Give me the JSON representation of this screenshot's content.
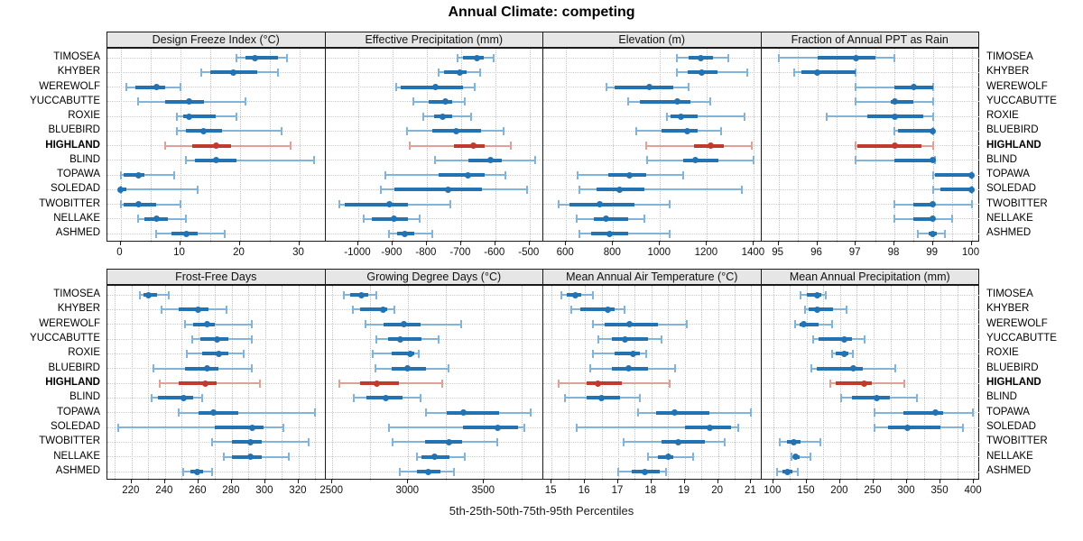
{
  "colors": {
    "normal": "#2373b3",
    "normal_light": "#82b4d9",
    "highlight": "#c03a2e",
    "highlight_light": "#dfa097",
    "grid": "#c3c3c3",
    "header_bg": "#e6e6e6",
    "panel_border": "#1a1a1a"
  },
  "chart_data": {
    "type": "dotplot",
    "title": "Annual Climate: competing",
    "caption": "5th-25th-50th-75th-95th Percentiles",
    "percentiles": [
      5,
      25,
      50,
      75,
      95
    ],
    "legend_position": "none",
    "grid": "dotted",
    "sites": [
      "TIMOSEA",
      "KHYBER",
      "WEREWOLF",
      "YUCCABUTTE",
      "ROXIE",
      "BLUEBIRD",
      "HIGHLAND",
      "BLIND",
      "TOPAWA",
      "SOLEDAD",
      "TWOBITTER",
      "NELLAKE",
      "ASHMED"
    ],
    "highlight_site": "HIGHLAND",
    "panels": [
      {
        "label": "Design Freeze Index (°C)",
        "xlim": [
          -2.2,
          34.4
        ],
        "ticks": [
          0,
          10,
          20,
          30
        ],
        "minor_step": 5,
        "values": [
          [
            19.5,
            21,
            22.5,
            26.5,
            28
          ],
          [
            13.5,
            15,
            19,
            23,
            26.5
          ],
          [
            1,
            2.5,
            6,
            7.5,
            10
          ],
          [
            3,
            7.5,
            11.5,
            14,
            21
          ],
          [
            9.5,
            10.5,
            11.5,
            16,
            19.5
          ],
          [
            9.5,
            11,
            14,
            17,
            27
          ],
          [
            7.5,
            12,
            16,
            18.5,
            28.5
          ],
          [
            11,
            12.5,
            16,
            19.5,
            32.5
          ],
          [
            0,
            0.5,
            3,
            4,
            9
          ],
          [
            0,
            0,
            0,
            1,
            13
          ],
          [
            0,
            0.5,
            3,
            6,
            10
          ],
          [
            3,
            4,
            6,
            8,
            11
          ],
          [
            6,
            8.5,
            11,
            13,
            17.5
          ]
        ]
      },
      {
        "label": "Effective Precipitation (mm)",
        "xlim": [
          -1096,
          -460
        ],
        "ticks": [
          -1000,
          -900,
          -800,
          -700,
          -600,
          -500
        ],
        "minor_step": 100,
        "values": [
          [
            -710,
            -695,
            -655,
            -635,
            -605
          ],
          [
            -765,
            -750,
            -705,
            -685,
            -645
          ],
          [
            -890,
            -875,
            -775,
            -695,
            -660
          ],
          [
            -840,
            -795,
            -745,
            -725,
            -690
          ],
          [
            -810,
            -778,
            -755,
            -727,
            -672
          ],
          [
            -858,
            -783,
            -713,
            -643,
            -575
          ],
          [
            -850,
            -722,
            -665,
            -630,
            -556
          ],
          [
            -776,
            -680,
            -615,
            -582,
            -485
          ],
          [
            -920,
            -765,
            -680,
            -630,
            -570
          ],
          [
            -935,
            -895,
            -737,
            -640,
            -507
          ],
          [
            -1055,
            -1040,
            -908,
            -855,
            -732
          ],
          [
            -985,
            -960,
            -895,
            -855,
            -820
          ],
          [
            -910,
            -888,
            -864,
            -836,
            -783
          ]
        ]
      },
      {
        "label": "Elevation (m)",
        "xlim": [
          503,
          1431
        ],
        "ticks": [
          600,
          800,
          1000,
          1200,
          1400
        ],
        "minor_step": 200,
        "values": [
          [
            1070,
            1120,
            1175,
            1225,
            1290
          ],
          [
            1070,
            1118,
            1176,
            1245,
            1370
          ],
          [
            770,
            805,
            955,
            1055,
            1120
          ],
          [
            865,
            915,
            1075,
            1130,
            1215
          ],
          [
            1030,
            1046,
            1090,
            1160,
            1360
          ],
          [
            900,
            1005,
            1115,
            1160,
            1260
          ],
          [
            940,
            1145,
            1215,
            1270,
            1390
          ],
          [
            945,
            1100,
            1150,
            1250,
            1400
          ],
          [
            650,
            780,
            870,
            940,
            1100
          ],
          [
            655,
            730,
            828,
            935,
            1350
          ],
          [
            570,
            615,
            742,
            890,
            1040
          ],
          [
            645,
            717,
            768,
            865,
            935
          ],
          [
            655,
            705,
            787,
            865,
            1040
          ]
        ]
      },
      {
        "label": "Fraction of Annual PPT as Rain",
        "xlim": [
          94.55,
          100.2
        ],
        "ticks": [
          95,
          96,
          97,
          98,
          99,
          100
        ],
        "minor_step": 0.5,
        "values": [
          [
            95,
            96,
            97,
            97.5,
            98
          ],
          [
            95.4,
            95.6,
            96,
            97,
            97
          ],
          [
            97,
            98,
            98.5,
            99,
            99
          ],
          [
            97,
            97.9,
            98,
            98.5,
            99
          ],
          [
            96.25,
            97.3,
            98,
            98.75,
            99
          ],
          [
            98,
            98.1,
            99,
            99,
            99
          ],
          [
            97,
            97.05,
            98,
            98.7,
            99
          ],
          [
            97,
            98,
            99,
            99,
            99.05
          ],
          [
            99,
            99.05,
            100,
            100,
            100
          ],
          [
            99,
            99.2,
            100,
            100,
            100
          ],
          [
            98,
            98.5,
            99,
            99,
            100
          ],
          [
            98,
            98.5,
            99,
            99.05,
            99.5
          ],
          [
            98.6,
            98.9,
            99,
            99.1,
            99.3
          ]
        ]
      },
      {
        "label": "Frost-Free Days",
        "xlim": [
          205.5,
          336
        ],
        "ticks": [
          220,
          240,
          260,
          280,
          300,
          320
        ],
        "minor_step": 10,
        "values": [
          [
            225,
            227,
            230,
            235,
            242
          ],
          [
            238,
            248,
            260,
            266,
            277
          ],
          [
            252,
            257,
            265,
            270,
            292
          ],
          [
            256,
            261,
            271,
            278,
            292
          ],
          [
            253,
            262,
            272,
            278,
            287
          ],
          [
            233,
            252,
            265,
            272,
            292
          ],
          [
            237,
            248,
            264,
            271,
            297
          ],
          [
            232,
            236,
            251,
            257,
            262
          ],
          [
            248,
            260,
            269,
            284,
            330
          ],
          [
            212,
            270,
            292,
            299,
            311
          ],
          [
            268,
            280,
            291,
            298,
            326
          ],
          [
            275,
            280,
            291,
            298,
            314
          ],
          [
            251,
            255,
            259,
            263,
            268
          ]
        ]
      },
      {
        "label": "Growing Degree Days (°C)",
        "xlim": [
          2454,
          3891
        ],
        "ticks": [
          2500,
          3000,
          3500
        ],
        "minor_step": 250,
        "values": [
          [
            2575,
            2615,
            2690,
            2735,
            2790
          ],
          [
            2635,
            2680,
            2835,
            2860,
            2910
          ],
          [
            2720,
            2840,
            2970,
            3080,
            3350
          ],
          [
            2790,
            2865,
            2945,
            3090,
            3200
          ],
          [
            2765,
            2890,
            3015,
            3040,
            3070
          ],
          [
            2785,
            2890,
            2995,
            3120,
            3265
          ],
          [
            2545,
            2685,
            2790,
            2940,
            3225
          ],
          [
            2640,
            2725,
            2850,
            2960,
            3080
          ],
          [
            3115,
            3255,
            3365,
            3600,
            3810
          ],
          [
            2875,
            3360,
            3590,
            3725,
            3765
          ],
          [
            2895,
            3110,
            3270,
            3355,
            3585
          ],
          [
            3055,
            3090,
            3175,
            3275,
            3375
          ],
          [
            2945,
            3055,
            3130,
            3215,
            3300
          ]
        ]
      },
      {
        "label": "Mean Annual Air Temperature (°C)",
        "xlim": [
          14.75,
          21.3
        ],
        "ticks": [
          15,
          16,
          17,
          18,
          19,
          20,
          21
        ],
        "minor_step": 0.5,
        "values": [
          [
            15.3,
            15.45,
            15.7,
            15.9,
            16.25
          ],
          [
            15.6,
            15.85,
            16.7,
            16.9,
            17.2
          ],
          [
            16.25,
            16.6,
            17.35,
            18.2,
            19.05
          ],
          [
            16.4,
            16.8,
            17.2,
            17.9,
            18.3
          ],
          [
            16.25,
            16.9,
            17.45,
            17.65,
            17.85
          ],
          [
            16.15,
            16.8,
            17.3,
            17.9,
            18.7
          ],
          [
            15.2,
            16.05,
            16.4,
            17.1,
            18.55
          ],
          [
            15.4,
            16.05,
            16.5,
            17.05,
            17.65
          ],
          [
            17.6,
            18.15,
            18.7,
            19.75,
            21.0
          ],
          [
            15.75,
            19.0,
            19.75,
            20.4,
            20.6
          ],
          [
            17.15,
            18.3,
            18.8,
            19.6,
            20.2
          ],
          [
            17.9,
            18.2,
            18.5,
            18.65,
            19.25
          ],
          [
            17.0,
            17.4,
            17.8,
            18.25,
            18.45
          ]
        ]
      },
      {
        "label": "Mean Annual Precipitation (mm)",
        "xlim": [
          82,
          408
        ],
        "ticks": [
          100,
          150,
          200,
          250,
          300,
          350,
          400
        ],
        "minor_step": 25,
        "values": [
          [
            140,
            150,
            166,
            172,
            178
          ],
          [
            147,
            153,
            165,
            189,
            209
          ],
          [
            132,
            139,
            146,
            168,
            188
          ],
          [
            160,
            167,
            206,
            218,
            236
          ],
          [
            188,
            193,
            206,
            213,
            219
          ],
          [
            157,
            165,
            220,
            234,
            282
          ],
          [
            185,
            193,
            236,
            247,
            296
          ],
          [
            202,
            218,
            255,
            275,
            315
          ],
          [
            252,
            294,
            342,
            354,
            398
          ],
          [
            251,
            272,
            300,
            350,
            383
          ],
          [
            109,
            121,
            130,
            141,
            170
          ],
          [
            127,
            130,
            133,
            140,
            155
          ],
          [
            106,
            113,
            121,
            129,
            136
          ]
        ]
      }
    ]
  }
}
